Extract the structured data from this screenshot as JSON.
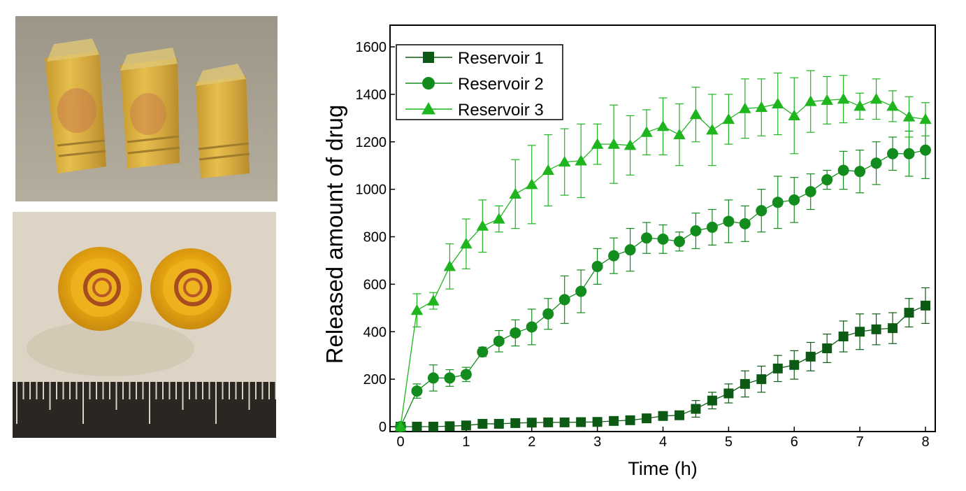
{
  "photos": {
    "top": {
      "icon": "three-reservoirs-side-view"
    },
    "bottom": {
      "icon": "two-reservoirs-top-view-with-ruler"
    }
  },
  "chart_data": {
    "type": "line",
    "xlabel": "Time (h)",
    "ylabel": "Released amount of drug",
    "xlim": [
      0,
      8
    ],
    "ylim": [
      0,
      1700
    ],
    "xticks": [
      0,
      1,
      2,
      3,
      4,
      5,
      6,
      7,
      8
    ],
    "yticks": [
      0,
      200,
      400,
      600,
      800,
      1000,
      1200,
      1400,
      1600
    ],
    "grid": false,
    "legend_position": "top-left",
    "x": [
      0,
      0.25,
      0.5,
      0.75,
      1,
      1.25,
      1.5,
      1.75,
      2,
      2.25,
      2.5,
      2.75,
      3,
      3.25,
      3.5,
      3.75,
      4,
      4.25,
      4.5,
      4.75,
      5,
      5.25,
      5.5,
      5.75,
      6,
      6.25,
      6.5,
      6.75,
      7,
      7.25,
      7.5,
      7.75,
      8
    ],
    "series": [
      {
        "name": "Reservoir 1",
        "marker": "square",
        "color": "#0d5a14",
        "values": [
          0,
          0,
          0,
          2,
          5,
          12,
          12,
          15,
          17,
          18,
          18,
          19,
          20,
          24,
          27,
          35,
          45,
          48,
          75,
          110,
          140,
          180,
          200,
          245,
          260,
          295,
          330,
          380,
          400,
          410,
          415,
          480,
          510
        ],
        "errors": [
          0,
          0,
          0,
          0,
          0,
          0,
          0,
          0,
          0,
          0,
          0,
          0,
          0,
          0,
          0,
          0,
          0,
          10,
          35,
          35,
          40,
          55,
          55,
          55,
          60,
          60,
          60,
          65,
          75,
          65,
          65,
          60,
          75
        ]
      },
      {
        "name": "Reservoir 2",
        "marker": "circle",
        "color": "#128c1c",
        "values": [
          0,
          150,
          205,
          205,
          220,
          315,
          360,
          395,
          420,
          475,
          535,
          570,
          675,
          720,
          745,
          795,
          790,
          780,
          825,
          840,
          865,
          855,
          910,
          945,
          955,
          990,
          1040,
          1080,
          1075,
          1110,
          1150,
          1150,
          1165
        ],
        "errors": [
          0,
          30,
          55,
          35,
          30,
          20,
          45,
          55,
          75,
          65,
          100,
          90,
          75,
          75,
          90,
          65,
          60,
          40,
          75,
          75,
          90,
          75,
          90,
          110,
          95,
          75,
          40,
          80,
          90,
          90,
          70,
          95,
          120
        ]
      },
      {
        "name": "Reservoir 3",
        "marker": "triangle",
        "color": "#1fb51f",
        "values": [
          0,
          490,
          530,
          675,
          770,
          845,
          875,
          980,
          1020,
          1080,
          1115,
          1120,
          1190,
          1190,
          1185,
          1240,
          1265,
          1230,
          1315,
          1250,
          1295,
          1340,
          1345,
          1360,
          1310,
          1370,
          1375,
          1380,
          1350,
          1380,
          1350,
          1305,
          1295
        ],
        "errors": [
          0,
          70,
          35,
          95,
          105,
          110,
          55,
          145,
          165,
          150,
          140,
          155,
          85,
          165,
          125,
          95,
          120,
          130,
          115,
          150,
          105,
          125,
          120,
          130,
          160,
          130,
          100,
          100,
          55,
          85,
          65,
          85,
          70
        ]
      }
    ]
  }
}
